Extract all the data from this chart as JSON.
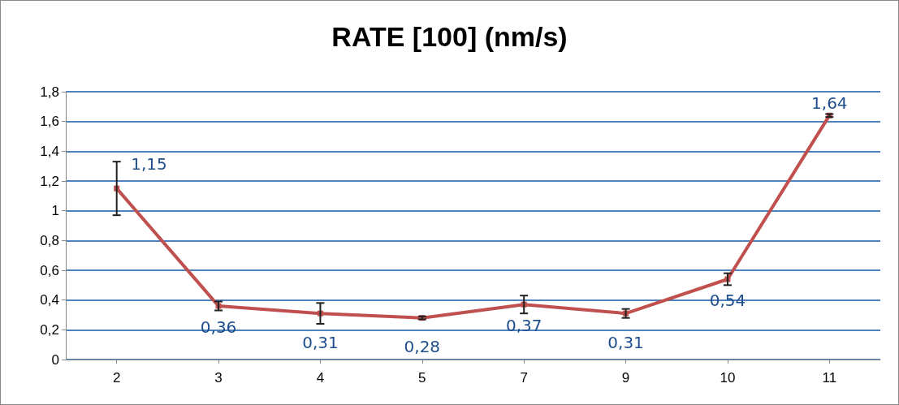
{
  "chart_data": {
    "type": "line",
    "title": "RATE [100] (nm/s)",
    "categories": [
      "2",
      "3",
      "4",
      "5",
      "7",
      "9",
      "10",
      "11"
    ],
    "series": [
      {
        "color": "#c0504d",
        "values": [
          1.15,
          0.36,
          0.31,
          0.28,
          0.37,
          0.31,
          0.54,
          1.64
        ],
        "errors": [
          0.18,
          0.03,
          0.07,
          0.01,
          0.06,
          0.03,
          0.04,
          0.01
        ],
        "value_labels": [
          "1,15",
          "0,36",
          "0,31",
          "0,28",
          "0,37",
          "0,31",
          "0,54",
          "1,64"
        ]
      }
    ],
    "ylim": [
      0,
      1.8
    ],
    "yticks": [
      0,
      {
        "value": 0.2,
        "label": "0,2"
      },
      {
        "value": 0.4,
        "label": "0,4"
      },
      {
        "value": 0.6,
        "label": "0,6"
      },
      {
        "value": 0.8,
        "label": "0,8"
      },
      1,
      {
        "value": 1.2,
        "label": "1,2"
      },
      {
        "value": 1.4,
        "label": "1,4"
      },
      {
        "value": 1.6,
        "label": "1,6"
      },
      {
        "value": 1.8,
        "label": "1,8"
      }
    ],
    "grid": "y",
    "marker": "square",
    "line_style": "solid"
  }
}
